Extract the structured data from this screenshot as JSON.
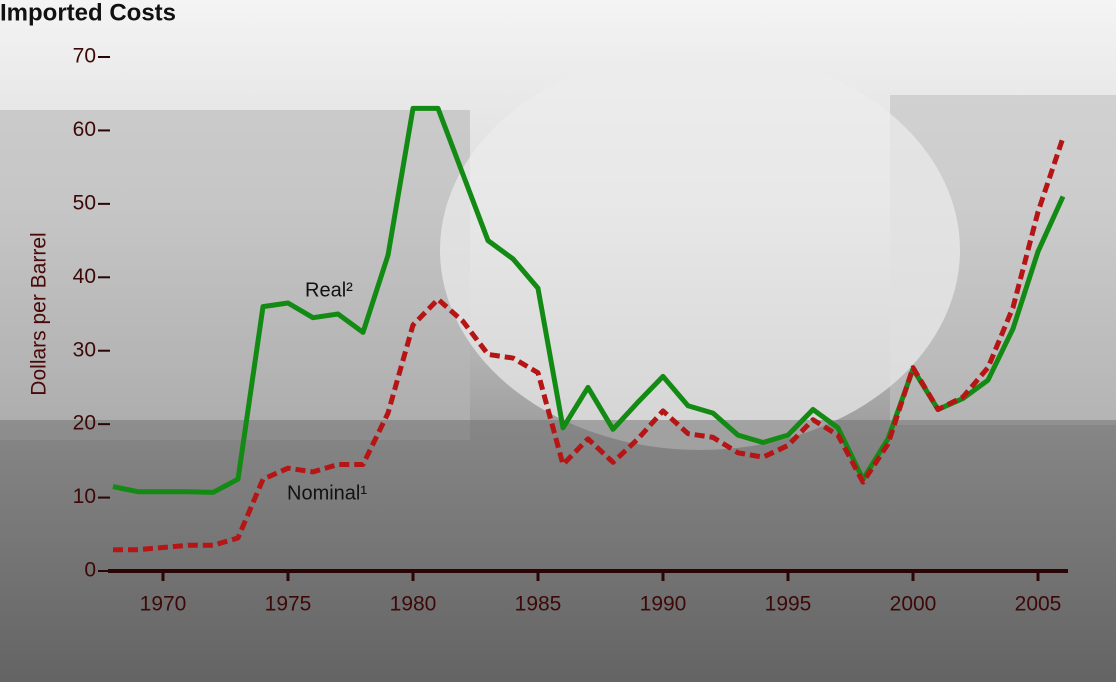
{
  "chart_data": {
    "type": "line",
    "title": "Imported Costs",
    "y_label": "Dollars per Barrel",
    "annotations": [
      "Real²",
      "Nominal¹"
    ],
    "x": [
      1968,
      1969,
      1970,
      1971,
      1972,
      1973,
      1974,
      1975,
      1976,
      1977,
      1978,
      1979,
      1980,
      1981,
      1982,
      1983,
      1984,
      1985,
      1986,
      1987,
      1988,
      1989,
      1990,
      1991,
      1992,
      1993,
      1994,
      1995,
      1996,
      1997,
      1998,
      1999,
      2000,
      2001,
      2002,
      2003,
      2004,
      2005,
      2006
    ],
    "series": [
      {
        "name": "Real",
        "color": "#138a13",
        "dashed": false,
        "values": [
          11.5,
          10.8,
          10.8,
          10.8,
          10.7,
          12.5,
          36,
          36.5,
          34.5,
          35,
          32.5,
          43,
          63,
          63,
          54,
          45,
          42.5,
          38.5,
          19.5,
          25,
          19.3,
          23,
          26.5,
          22.5,
          21.5,
          18.5,
          17.5,
          18.5,
          22,
          19.5,
          12.5,
          18,
          27.5,
          22,
          23.5,
          26,
          33,
          43.5,
          51
        ]
      },
      {
        "name": "Nominal",
        "color": "#b51515",
        "dashed": true,
        "values": [
          2.9,
          2.9,
          3.2,
          3.5,
          3.5,
          4.5,
          12.5,
          14,
          13.5,
          14.5,
          14.5,
          21.5,
          33.5,
          37,
          34,
          29.5,
          29,
          27,
          14.5,
          18,
          14.8,
          18,
          21.8,
          18.7,
          18.2,
          16.1,
          15.5,
          17.1,
          20.6,
          18.5,
          12.1,
          17.3,
          27.7,
          22,
          23.7,
          27.7,
          35.9,
          48.9,
          59
        ]
      }
    ],
    "xlim": [
      1967.8,
      2006.2
    ],
    "xticks": [
      1970,
      1975,
      1980,
      1985,
      1990,
      1995,
      2000,
      2005
    ],
    "ylim": [
      0,
      70
    ],
    "yticks": [
      0,
      10,
      20,
      30,
      40,
      50,
      60,
      70
    ],
    "grid": false
  }
}
